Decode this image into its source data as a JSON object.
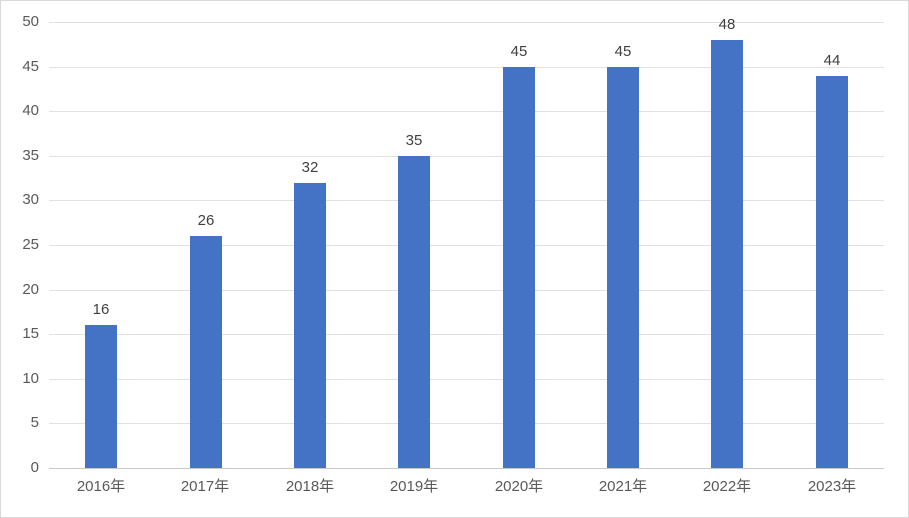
{
  "chart_data": {
    "type": "bar",
    "title": "",
    "xlabel": "",
    "ylabel": "",
    "categories": [
      "2016年",
      "2017年",
      "2018年",
      "2019年",
      "2020年",
      "2021年",
      "2022年",
      "2023年"
    ],
    "values": [
      16,
      26,
      32,
      35,
      45,
      45,
      48,
      44
    ],
    "data_labels": [
      16,
      26,
      32,
      35,
      45,
      45,
      48,
      44
    ],
    "ylim": [
      0,
      50
    ],
    "ytick_step": 5,
    "yticks": [
      0,
      5,
      10,
      15,
      20,
      25,
      30,
      35,
      40,
      45,
      50
    ],
    "grid": "horizontal",
    "legend_position": "none",
    "colors": {
      "bar": "#4472C4",
      "gridline": "#E2E2E2",
      "axis_line": "#C9C9C9",
      "tick_label": "#595959",
      "data_label": "#404040",
      "border": "#D9D9D9",
      "background": "#FFFFFF"
    }
  }
}
